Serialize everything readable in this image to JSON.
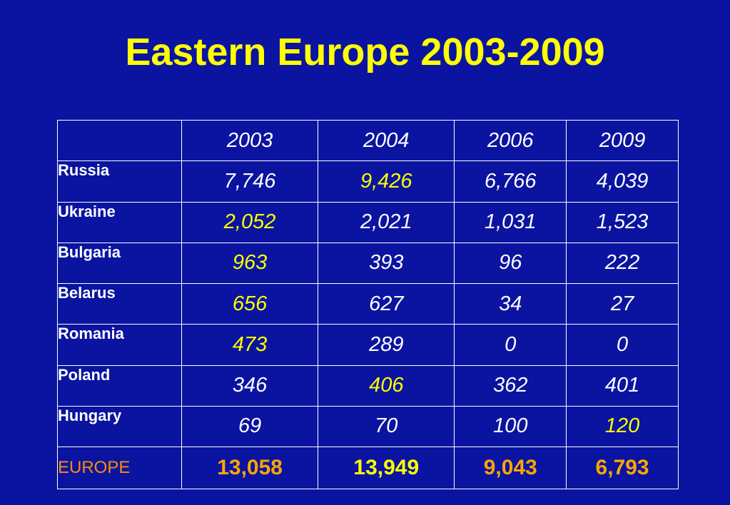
{
  "title": "Eastern Europe 2003-2009",
  "table": {
    "headers": [
      "2003",
      "2004",
      "2006",
      "2009"
    ],
    "rows": [
      {
        "country": "Russia",
        "values": [
          "7,746",
          "9,426",
          "6,766",
          "4,039"
        ],
        "highlight": [
          false,
          true,
          false,
          false
        ]
      },
      {
        "country": "Ukraine",
        "values": [
          "2,052",
          "2,021",
          "1,031",
          "1,523"
        ],
        "highlight": [
          true,
          false,
          false,
          false
        ]
      },
      {
        "country": "Bulgaria",
        "values": [
          "963",
          "393",
          "96",
          "222"
        ],
        "highlight": [
          true,
          false,
          false,
          false
        ]
      },
      {
        "country": "Belarus",
        "values": [
          "656",
          "627",
          "34",
          "27"
        ],
        "highlight": [
          true,
          false,
          false,
          false
        ]
      },
      {
        "country": "Romania",
        "values": [
          "473",
          "289",
          "0",
          "0"
        ],
        "highlight": [
          true,
          false,
          false,
          false
        ]
      },
      {
        "country": "Poland",
        "values": [
          "346",
          "406",
          "362",
          "401"
        ],
        "highlight": [
          false,
          true,
          false,
          false
        ]
      },
      {
        "country": "Hungary",
        "values": [
          "69",
          "70",
          "100",
          "120"
        ],
        "highlight": [
          false,
          false,
          false,
          true
        ]
      }
    ],
    "total": {
      "label": "EUROPE",
      "values": [
        "13,058",
        "13,949",
        "9,043",
        "6,793"
      ],
      "highlight": [
        false,
        true,
        false,
        false
      ]
    }
  },
  "colors": {
    "background": "#0a14a0",
    "title": "#ffff00",
    "highlight": "#ffff00",
    "total_label": "#ff8c00",
    "total_values": "#ffa500",
    "text": "#ffffff"
  }
}
